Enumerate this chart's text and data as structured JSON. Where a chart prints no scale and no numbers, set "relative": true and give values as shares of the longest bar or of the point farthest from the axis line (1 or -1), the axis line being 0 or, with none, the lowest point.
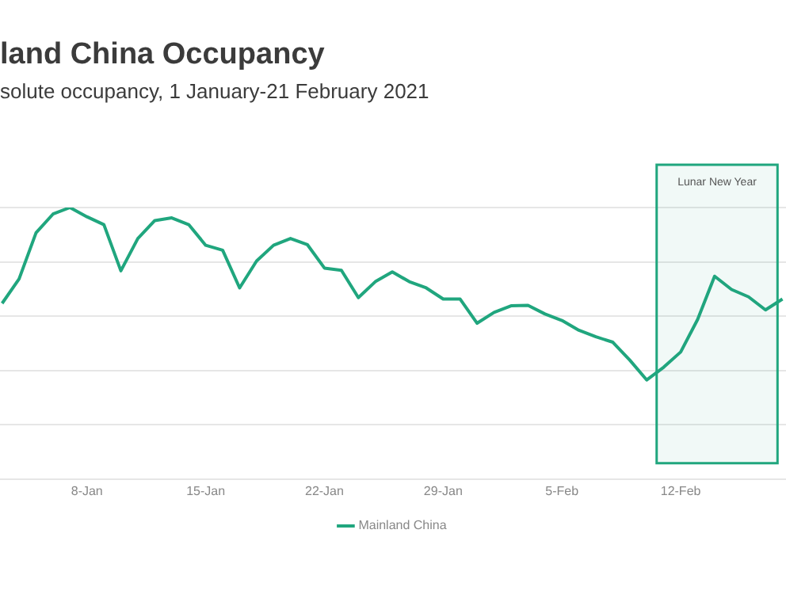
{
  "chart_data": {
    "type": "line",
    "title": "land China Occupancy",
    "subtitle": "solute occupancy, 1 January-21 February 2021",
    "relative": true,
    "grid": "y",
    "legend": "bottom",
    "marker": "none",
    "line_style": "solid",
    "xlim": [
      "2021-01-02T21:00",
      "2021-02-18T05:00"
    ],
    "xticks": [
      {
        "value": "2021-01-08",
        "label": "8-Jan"
      },
      {
        "value": "2021-01-15",
        "label": "15-Jan"
      },
      {
        "value": "2021-01-22",
        "label": "22-Jan"
      },
      {
        "value": "2021-01-29",
        "label": "29-Jan"
      },
      {
        "value": "2021-02-05",
        "label": "5-Feb"
      },
      {
        "value": "2021-02-12",
        "label": "12-Feb"
      }
    ],
    "x": [
      "2021-01-03",
      "2021-01-04",
      "2021-01-05",
      "2021-01-06",
      "2021-01-07",
      "2021-01-08",
      "2021-01-09",
      "2021-01-10",
      "2021-01-11",
      "2021-01-12",
      "2021-01-13",
      "2021-01-14",
      "2021-01-15",
      "2021-01-16",
      "2021-01-17",
      "2021-01-18",
      "2021-01-19",
      "2021-01-20",
      "2021-01-21",
      "2021-01-22",
      "2021-01-23",
      "2021-01-24",
      "2021-01-25",
      "2021-01-26",
      "2021-01-27",
      "2021-01-28",
      "2021-01-29",
      "2021-01-30",
      "2021-01-31",
      "2021-02-01",
      "2021-02-02",
      "2021-02-03",
      "2021-02-04",
      "2021-02-05",
      "2021-02-06",
      "2021-02-07",
      "2021-02-08",
      "2021-02-09",
      "2021-02-10",
      "2021-02-11",
      "2021-02-12",
      "2021-02-13",
      "2021-02-14",
      "2021-02-15",
      "2021-02-16",
      "2021-02-17",
      "2021-02-18"
    ],
    "series": [
      {
        "name": "Mainland China",
        "color": "#20a67e",
        "values": [
          0.647,
          0.737,
          0.907,
          0.976,
          1,
          0.966,
          0.937,
          0.767,
          0.886,
          0.952,
          0.962,
          0.937,
          0.861,
          0.843,
          0.704,
          0.803,
          0.861,
          0.886,
          0.863,
          0.777,
          0.769,
          0.668,
          0.727,
          0.763,
          0.727,
          0.704,
          0.663,
          0.663,
          0.574,
          0.614,
          0.638,
          0.64,
          0.608,
          0.584,
          0.548,
          0.524,
          0.504,
          0.438,
          0.365,
          0.412,
          0.468,
          0.588,
          0.747,
          0.698,
          0.671,
          0.623,
          0.663
        ]
      }
    ],
    "bands": [
      {
        "axis": "x",
        "from": "2021-02-10T14:00",
        "to": "2021-02-17T17:00",
        "label": "Lunar New Year",
        "color": "#20a67e"
      }
    ]
  }
}
